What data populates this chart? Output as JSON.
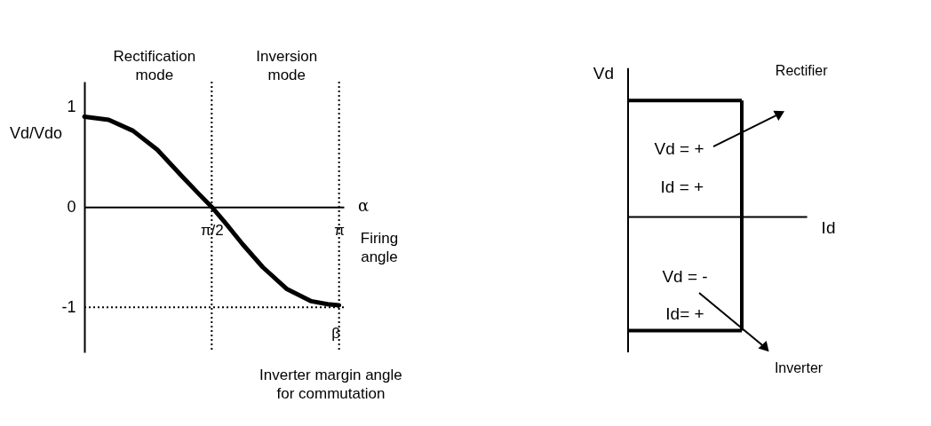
{
  "chart_data": [
    {
      "type": "line",
      "ylabel": "Vd/Vdo",
      "xlabel": "α",
      "x": [
        0,
        0.3,
        0.6,
        0.9,
        1.2,
        1.4,
        1.5708,
        1.75,
        1.95,
        2.2,
        2.5,
        2.8,
        3.0,
        3.1416
      ],
      "series": [
        {
          "color": "#000000",
          "values": [
            0.9,
            0.87,
            0.76,
            0.57,
            0.31,
            0.14,
            0,
            -0.17,
            -0.37,
            -0.6,
            -0.82,
            -0.94,
            -0.97,
            -0.98
          ]
        }
      ],
      "xlim": [
        0,
        3.2
      ],
      "xticks": [
        {
          "value": 1.5708,
          "label": "π/2"
        },
        {
          "value": 3.1416,
          "label": "π"
        }
      ],
      "ylim": [
        -1.45,
        1.25
      ],
      "yticks": [
        -1,
        0,
        1
      ],
      "grid": false,
      "marker": "none",
      "line_style": "solid",
      "ref_lines": [
        {
          "axis": "x",
          "value": 1.5708,
          "line_style": "dotted",
          "color": "#000000"
        },
        {
          "axis": "x",
          "value": 3.1416,
          "line_style": "dotted",
          "color": "#000000"
        },
        {
          "axis": "y",
          "value": -1,
          "line_style": "dotted",
          "color": "#000000"
        }
      ],
      "annotations": [
        "Rectification mode",
        "Inversion mode",
        "Firing angle",
        "β",
        "Inverter margin angle for commutation"
      ]
    },
    {
      "type": "other",
      "annotations": [
        "Vd",
        "Id",
        "Vd = +",
        "Id = +",
        "Vd = -",
        "Id= +",
        "Rectifier",
        "Inverter"
      ]
    }
  ]
}
